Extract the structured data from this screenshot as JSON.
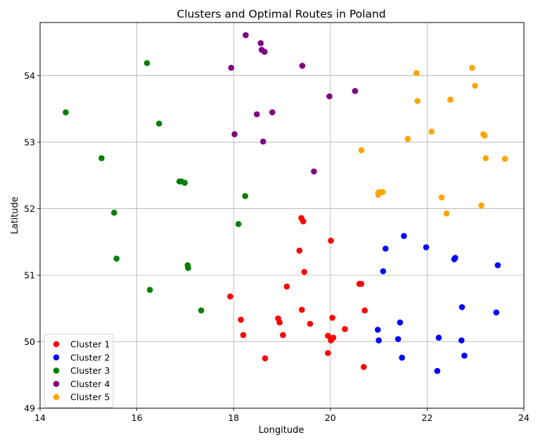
{
  "chart_data": {
    "type": "scatter",
    "title": "Clusters and Optimal Routes in Poland",
    "xlabel": "Longitude",
    "ylabel": "Latitude",
    "xlim": [
      14,
      24
    ],
    "ylim": [
      49,
      54.8
    ],
    "xticks": [
      "14",
      "16",
      "18",
      "20",
      "22",
      "24"
    ],
    "yticks": [
      "49",
      "50",
      "51",
      "52",
      "53",
      "54"
    ],
    "grid": true,
    "legend_position": "lower-left",
    "series": [
      {
        "name": "Cluster 1",
        "color": "#ff0000",
        "points": [
          [
            19.4,
            51.86
          ],
          [
            19.44,
            51.81
          ],
          [
            20.01,
            51.52
          ],
          [
            19.36,
            51.37
          ],
          [
            19.46,
            51.05
          ],
          [
            20.6,
            50.87
          ],
          [
            20.64,
            50.87
          ],
          [
            19.1,
            50.83
          ],
          [
            17.93,
            50.68
          ],
          [
            19.41,
            50.48
          ],
          [
            20.71,
            50.47
          ],
          [
            18.92,
            50.35
          ],
          [
            20.04,
            50.36
          ],
          [
            18.95,
            50.29
          ],
          [
            19.58,
            50.27
          ],
          [
            18.15,
            50.33
          ],
          [
            20.3,
            50.19
          ],
          [
            18.2,
            50.1
          ],
          [
            19.02,
            50.1
          ],
          [
            19.95,
            50.09
          ],
          [
            20.06,
            50.06
          ],
          [
            20.01,
            50.02
          ],
          [
            19.95,
            49.83
          ],
          [
            18.65,
            49.75
          ],
          [
            20.69,
            49.62
          ]
        ]
      },
      {
        "name": "Cluster 2",
        "color": "#0000ff",
        "points": [
          [
            21.52,
            51.59
          ],
          [
            21.98,
            51.42
          ],
          [
            21.14,
            51.4
          ],
          [
            22.58,
            51.26
          ],
          [
            22.56,
            51.24
          ],
          [
            23.46,
            51.15
          ],
          [
            21.09,
            51.06
          ],
          [
            22.72,
            50.52
          ],
          [
            23.43,
            50.44
          ],
          [
            21.44,
            50.29
          ],
          [
            20.98,
            50.18
          ],
          [
            22.24,
            50.06
          ],
          [
            21.4,
            50.04
          ],
          [
            21.0,
            50.02
          ],
          [
            22.71,
            50.02
          ],
          [
            22.77,
            49.79
          ],
          [
            21.48,
            49.76
          ],
          [
            22.21,
            49.56
          ]
        ]
      },
      {
        "name": "Cluster 3",
        "color": "#008000",
        "points": [
          [
            16.21,
            54.19
          ],
          [
            14.53,
            53.45
          ],
          [
            16.46,
            53.28
          ],
          [
            15.27,
            52.76
          ],
          [
            16.88,
            52.41
          ],
          [
            16.92,
            52.41
          ],
          [
            16.99,
            52.39
          ],
          [
            18.24,
            52.19
          ],
          [
            15.53,
            51.94
          ],
          [
            18.1,
            51.77
          ],
          [
            15.58,
            51.25
          ],
          [
            17.05,
            51.15
          ],
          [
            17.06,
            51.11
          ],
          [
            16.27,
            50.78
          ],
          [
            17.33,
            50.47
          ]
        ]
      },
      {
        "name": "Cluster 4",
        "color": "#800080",
        "points": [
          [
            18.25,
            54.61
          ],
          [
            18.56,
            54.49
          ],
          [
            18.58,
            54.39
          ],
          [
            18.64,
            54.36
          ],
          [
            17.95,
            54.12
          ],
          [
            19.42,
            54.15
          ],
          [
            20.51,
            53.77
          ],
          [
            19.98,
            53.69
          ],
          [
            18.8,
            53.45
          ],
          [
            18.48,
            53.42
          ],
          [
            18.02,
            53.12
          ],
          [
            18.61,
            53.01
          ],
          [
            19.66,
            52.56
          ]
        ]
      },
      {
        "name": "Cluster 5",
        "color": "#ffa500",
        "points": [
          [
            22.93,
            54.12
          ],
          [
            21.78,
            54.04
          ],
          [
            22.99,
            53.85
          ],
          [
            22.48,
            53.64
          ],
          [
            21.8,
            53.62
          ],
          [
            22.09,
            53.16
          ],
          [
            23.16,
            53.12
          ],
          [
            23.19,
            53.1
          ],
          [
            21.6,
            53.05
          ],
          [
            20.64,
            52.88
          ],
          [
            23.21,
            52.76
          ],
          [
            23.61,
            52.75
          ],
          [
            20.99,
            52.24
          ],
          [
            21.01,
            52.25
          ],
          [
            21.08,
            52.25
          ],
          [
            20.99,
            52.21
          ],
          [
            22.3,
            52.17
          ],
          [
            23.12,
            52.05
          ],
          [
            22.4,
            51.93
          ]
        ]
      }
    ]
  }
}
